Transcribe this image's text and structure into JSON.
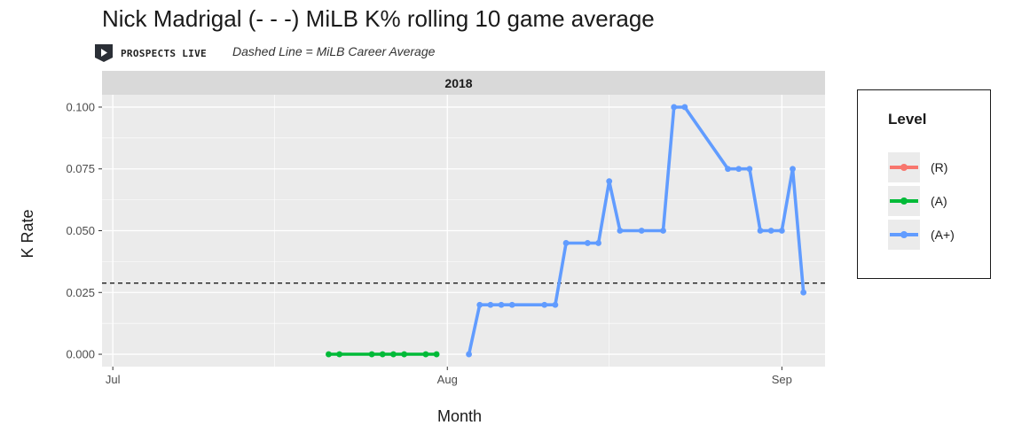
{
  "header": {
    "title": "Nick Madrigal (- - -) MiLB K% rolling 10 game average",
    "brand": "PROSPECTS LIVE",
    "subtitle": "Dashed Line = MiLB Career Average"
  },
  "chart_data": {
    "type": "line",
    "facet": "2018",
    "xlabel": "Month",
    "ylabel": "K Rate",
    "x_ticks": [
      "Jul",
      "Aug",
      "Sep"
    ],
    "y_ticks": [
      "0.000",
      "0.025",
      "0.050",
      "0.075",
      "0.100"
    ],
    "xlim": [
      "2018-06-30",
      "2018-09-05"
    ],
    "ylim": [
      -0.005,
      0.105
    ],
    "career_average": 0.0288,
    "grid": true,
    "legend": {
      "title": "Level",
      "placement": "right"
    },
    "series": [
      {
        "name": "(R)",
        "color": "#F8766D",
        "points": []
      },
      {
        "name": "(A)",
        "color": "#00BA38",
        "points": [
          [
            "2018-07-21",
            0.0
          ],
          [
            "2018-07-22",
            0.0
          ],
          [
            "2018-07-25",
            0.0
          ],
          [
            "2018-07-26",
            0.0
          ],
          [
            "2018-07-27",
            0.0
          ],
          [
            "2018-07-28",
            0.0
          ],
          [
            "2018-07-30",
            0.0
          ],
          [
            "2018-07-31",
            0.0
          ]
        ]
      },
      {
        "name": "(A+)",
        "color": "#619CFF",
        "points": [
          [
            "2018-08-03",
            0.0
          ],
          [
            "2018-08-04",
            0.02
          ],
          [
            "2018-08-05",
            0.02
          ],
          [
            "2018-08-06",
            0.02
          ],
          [
            "2018-08-07",
            0.02
          ],
          [
            "2018-08-10",
            0.02
          ],
          [
            "2018-08-11",
            0.02
          ],
          [
            "2018-08-12",
            0.045
          ],
          [
            "2018-08-14",
            0.045
          ],
          [
            "2018-08-15",
            0.045
          ],
          [
            "2018-08-16",
            0.07
          ],
          [
            "2018-08-17",
            0.05
          ],
          [
            "2018-08-19",
            0.05
          ],
          [
            "2018-08-21",
            0.05
          ],
          [
            "2018-08-22",
            0.1
          ],
          [
            "2018-08-23",
            0.1
          ],
          [
            "2018-08-27",
            0.075
          ],
          [
            "2018-08-28",
            0.075
          ],
          [
            "2018-08-29",
            0.075
          ],
          [
            "2018-08-30",
            0.05
          ],
          [
            "2018-08-31",
            0.05
          ],
          [
            "2018-09-01",
            0.05
          ],
          [
            "2018-09-02",
            0.075
          ],
          [
            "2018-09-03",
            0.025
          ]
        ]
      }
    ]
  }
}
